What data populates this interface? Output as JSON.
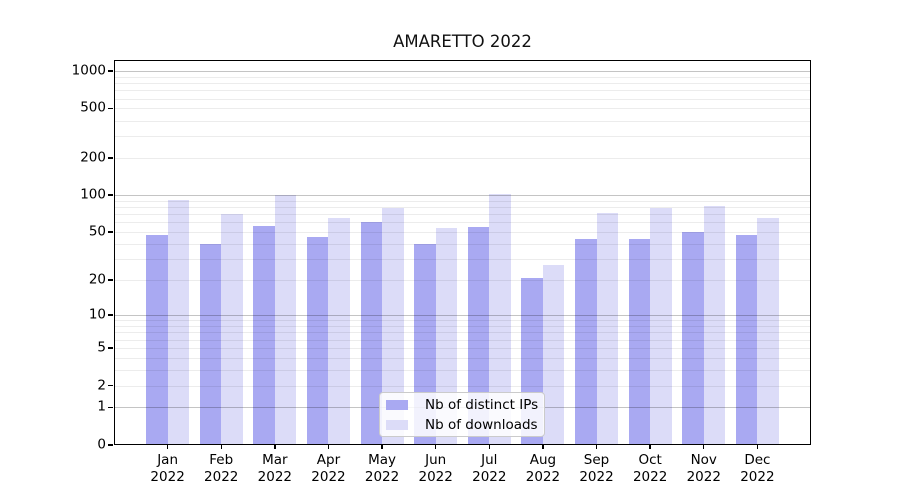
{
  "chart": {
    "title": "AMARETTO 2022"
  },
  "legend": {
    "items": [
      {
        "label": "Nb of distinct IPs",
        "swatch": "#a9a9f2"
      },
      {
        "label": "Nb of downloads",
        "swatch": "#dcdcf8"
      }
    ]
  },
  "chart_data": {
    "type": "bar",
    "title": "AMARETTO 2022",
    "categories": [
      "Jan 2022",
      "Feb 2022",
      "Mar 2022",
      "Apr 2022",
      "May 2022",
      "Jun 2022",
      "Jul 2022",
      "Aug 2022",
      "Sep 2022",
      "Oct 2022",
      "Nov 2022",
      "Dec 2022"
    ],
    "months": [
      "Jan",
      "Feb",
      "Mar",
      "Apr",
      "May",
      "Jun",
      "Jul",
      "Aug",
      "Sep",
      "Oct",
      "Nov",
      "Dec"
    ],
    "year": "2022",
    "series": [
      {
        "name": "Nb of distinct IPs",
        "color": "#a9a9f2",
        "values": [
          47,
          40,
          56,
          46,
          60,
          40,
          55,
          21,
          44,
          44,
          50,
          47
        ]
      },
      {
        "name": "Nb of downloads",
        "color": "#dcdcf8",
        "values": [
          92,
          70,
          101,
          65,
          78,
          54,
          102,
          27,
          72,
          78,
          81,
          65
        ]
      }
    ],
    "yscale": "log1p",
    "ylim": [
      0,
      1228
    ],
    "yticks": [
      0,
      1,
      2,
      5,
      10,
      20,
      50,
      100,
      200,
      500,
      1000
    ],
    "ytick_labels": [
      "0",
      "1",
      "2",
      "5",
      "10",
      "20",
      "50",
      "100",
      "200",
      "500",
      "1000"
    ],
    "grid": {
      "enabled": true,
      "major_ticks": [
        1,
        10,
        100,
        1000
      ],
      "minor_ticks": [
        2,
        3,
        4,
        5,
        6,
        7,
        8,
        9,
        20,
        30,
        40,
        50,
        60,
        70,
        80,
        90,
        200,
        300,
        400,
        500,
        600,
        700,
        800,
        900
      ]
    },
    "legend_position": "lower center",
    "xlabel": "",
    "ylabel": ""
  }
}
